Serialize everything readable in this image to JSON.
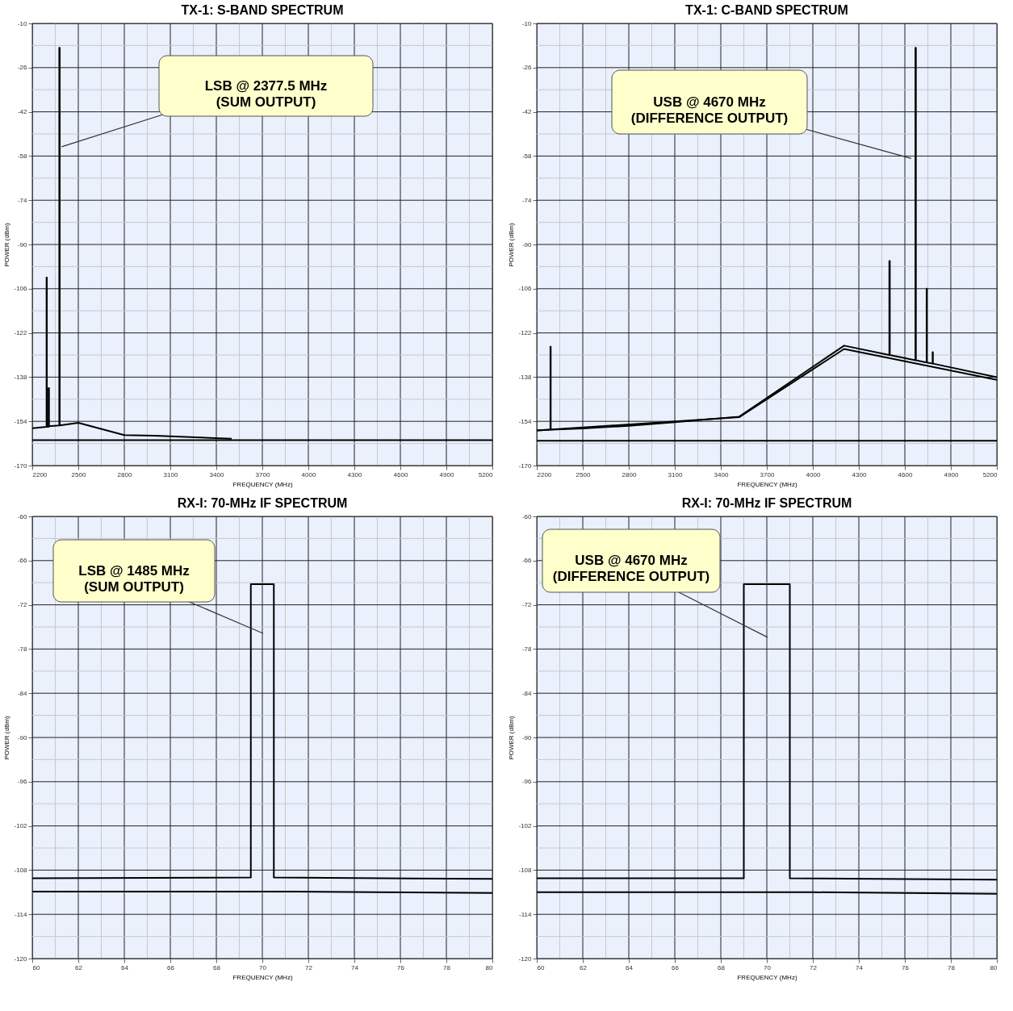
{
  "chart_data": [
    {
      "type": "line",
      "title": "TX-1: S-BAND SPECTRUM",
      "xlabel": "FREQUENCY (MHz)",
      "ylabel": "POWER (dBm)",
      "grid": true,
      "xlim": [
        2200,
        5200
      ],
      "xticks": [
        2200,
        {
          "value": 2350,
          "label": null
        },
        2500,
        {
          "value": 2650,
          "label": null
        },
        2800,
        {
          "value": 2950,
          "label": null
        },
        3100,
        {
          "value": 3250,
          "label": null
        },
        3400,
        {
          "value": 3550,
          "label": null
        },
        3700,
        {
          "value": 3850,
          "label": null
        },
        4000,
        {
          "value": 4150,
          "label": null
        },
        4300,
        {
          "value": 4450,
          "label": null
        },
        4600,
        {
          "value": 4750,
          "label": null
        },
        4900,
        {
          "value": 5050,
          "label": null
        },
        5200
      ],
      "ylim": [
        -170,
        -10
      ],
      "yticks": [
        -170,
        {
          "value": -162,
          "label": null
        },
        -154,
        {
          "value": -146,
          "label": null
        },
        -138,
        {
          "value": -130,
          "label": null
        },
        -122,
        {
          "value": -114,
          "label": null
        },
        -106,
        {
          "value": -98,
          "label": null
        },
        -90,
        {
          "value": -82,
          "label": null
        },
        -74,
        {
          "value": -66,
          "label": null
        },
        -58,
        {
          "value": -50,
          "label": null
        },
        -42,
        {
          "value": -34,
          "label": null
        },
        -26,
        {
          "value": -18,
          "label": null
        },
        -10
      ],
      "series": [
        {
          "color": "#000000",
          "x": [
            2200,
            2293,
            2293,
            2295,
            2295,
            2306,
            2306,
            2309,
            2309,
            2376,
            2376,
            2379,
            2379,
            2500,
            2800,
            3000,
            3500
          ],
          "values": [
            -156.5,
            -156,
            -102,
            -102,
            -156,
            -156,
            -142,
            -142,
            -155.8,
            -155.5,
            -18.8,
            -18.8,
            -155.5,
            -154.5,
            -159,
            -159.2,
            -160.3
          ]
        },
        {
          "color": "#000000",
          "x": [
            2200,
            5200
          ],
          "values": [
            -160.8,
            -160.8
          ]
        }
      ],
      "annotations": [
        "LSB @ 2377.5 MHz\n(SUM OUTPUT)"
      ]
    },
    {
      "type": "line",
      "title": "TX-1: C-BAND SPECTRUM",
      "xlabel": "FREQUENCY (MHz)",
      "ylabel": "POWER (dBm)",
      "grid": true,
      "xlim": [
        2200,
        5200
      ],
      "xticks": [
        2200,
        {
          "value": 2350,
          "label": null
        },
        2500,
        {
          "value": 2650,
          "label": null
        },
        2800,
        {
          "value": 2950,
          "label": null
        },
        3100,
        {
          "value": 3250,
          "label": null
        },
        3400,
        {
          "value": 3550,
          "label": null
        },
        3700,
        {
          "value": 3850,
          "label": null
        },
        4000,
        {
          "value": 4150,
          "label": null
        },
        4300,
        {
          "value": 4450,
          "label": null
        },
        4600,
        {
          "value": 4750,
          "label": null
        },
        4900,
        {
          "value": 5050,
          "label": null
        },
        5200
      ],
      "ylim": [
        -170,
        -10
      ],
      "yticks": [
        -170,
        {
          "value": -162,
          "label": null
        },
        -154,
        {
          "value": -146,
          "label": null
        },
        -138,
        {
          "value": -130,
          "label": null
        },
        -122,
        {
          "value": -114,
          "label": null
        },
        -106,
        {
          "value": -98,
          "label": null
        },
        -90,
        {
          "value": -82,
          "label": null
        },
        -74,
        {
          "value": -66,
          "label": null
        },
        -58,
        {
          "value": -50,
          "label": null
        },
        -42,
        {
          "value": -34,
          "label": null
        },
        -26,
        {
          "value": -18,
          "label": null
        },
        -10
      ],
      "series": [
        {
          "color": "#000000",
          "x": [
            2200,
            2289,
            2289,
            2291,
            2291,
            2500,
            2800,
            3100,
            3520,
            4204,
            4499,
            4499,
            4502,
            4502,
            4669,
            4669,
            4672,
            4672,
            4742,
            4742,
            4744,
            4744,
            4781,
            4781,
            4783,
            4783,
            5200
          ],
          "values": [
            -157.3,
            -157,
            -127,
            -127,
            -157,
            -156.6,
            -155.6,
            -154.3,
            -152.3,
            -126.6,
            -130,
            -96,
            -96,
            -130,
            -131.9,
            -18.8,
            -18.8,
            -131.9,
            -132.7,
            -106,
            -106,
            -132.7,
            -133.1,
            -129,
            -129,
            -133.1,
            -138
          ]
        },
        {
          "color": "#000000",
          "x": [
            2200,
            3520,
            4204,
            5200
          ],
          "values": [
            -157.3,
            -152.5,
            -127.8,
            -139
          ]
        },
        {
          "color": "#000000",
          "x": [
            2200,
            5200
          ],
          "values": [
            -161,
            -161
          ]
        }
      ],
      "annotations": [
        "USB @ 4670 MHz\n(DIFFERENCE OUTPUT)"
      ]
    },
    {
      "type": "line",
      "title": "RX-I: 70-MHz IF SPECTRUM",
      "xlabel": "FREQUENCY (MHz)",
      "ylabel": "POWER (dBm)",
      "grid": true,
      "xlim": [
        60,
        80
      ],
      "xticks": [
        60,
        {
          "value": 61,
          "label": null
        },
        62,
        {
          "value": 63,
          "label": null
        },
        64,
        {
          "value": 65,
          "label": null
        },
        66,
        {
          "value": 67,
          "label": null
        },
        68,
        {
          "value": 69,
          "label": null
        },
        70,
        {
          "value": 71,
          "label": null
        },
        72,
        {
          "value": 73,
          "label": null
        },
        74,
        {
          "value": 75,
          "label": null
        },
        76,
        {
          "value": 77,
          "label": null
        },
        78,
        {
          "value": 79,
          "label": null
        },
        80
      ],
      "ylim": [
        -120,
        -60
      ],
      "yticks": [
        -120,
        {
          "value": -117,
          "label": null
        },
        -114,
        {
          "value": -111,
          "label": null
        },
        -108,
        {
          "value": -105,
          "label": null
        },
        -102,
        {
          "value": -99,
          "label": null
        },
        -96,
        {
          "value": -93,
          "label": null
        },
        -90,
        {
          "value": -87,
          "label": null
        },
        -84,
        {
          "value": -81,
          "label": null
        },
        -78,
        {
          "value": -75,
          "label": null
        },
        -72,
        {
          "value": -69,
          "label": null
        },
        -66,
        {
          "value": -63,
          "label": null
        },
        -60
      ],
      "series": [
        {
          "color": "#000000",
          "x": [
            60,
            69.5,
            69.5,
            70.5,
            70.5,
            80
          ],
          "values": [
            -109.1,
            -109,
            -69.2,
            -69.2,
            -109,
            -109.2
          ]
        },
        {
          "color": "#000000",
          "x": [
            60,
            71.5,
            75,
            80
          ],
          "values": [
            -110.9,
            -110.9,
            -111,
            -111.1
          ]
        }
      ],
      "annotations": [
        "LSB @ 1485 MHz\n(SUM OUTPUT)"
      ]
    },
    {
      "type": "line",
      "title": "RX-I: 70-MHz IF SPECTRUM",
      "xlabel": "FREQUENCY (MHz)",
      "ylabel": "POWER (dBm)",
      "grid": true,
      "xlim": [
        60,
        80
      ],
      "xticks": [
        60,
        {
          "value": 61,
          "label": null
        },
        62,
        {
          "value": 63,
          "label": null
        },
        64,
        {
          "value": 65,
          "label": null
        },
        66,
        {
          "value": 67,
          "label": null
        },
        68,
        {
          "value": 69,
          "label": null
        },
        70,
        {
          "value": 71,
          "label": null
        },
        72,
        {
          "value": 73,
          "label": null
        },
        74,
        {
          "value": 75,
          "label": null
        },
        76,
        {
          "value": 77,
          "label": null
        },
        78,
        {
          "value": 79,
          "label": null
        },
        80
      ],
      "ylim": [
        -120,
        -60
      ],
      "yticks": [
        -120,
        {
          "value": -117,
          "label": null
        },
        -114,
        {
          "value": -111,
          "label": null
        },
        -108,
        {
          "value": -105,
          "label": null
        },
        -102,
        {
          "value": -99,
          "label": null
        },
        -96,
        {
          "value": -93,
          "label": null
        },
        -90,
        {
          "value": -87,
          "label": null
        },
        -84,
        {
          "value": -81,
          "label": null
        },
        -78,
        {
          "value": -75,
          "label": null
        },
        -72,
        {
          "value": -69,
          "label": null
        },
        -66,
        {
          "value": -63,
          "label": null
        },
        -60
      ],
      "series": [
        {
          "color": "#000000",
          "x": [
            60,
            69,
            69,
            71,
            71,
            80
          ],
          "values": [
            -109.1,
            -109.1,
            -69.2,
            -69.2,
            -109.1,
            -109.3
          ]
        },
        {
          "color": "#000000",
          "x": [
            60,
            66,
            72,
            80
          ],
          "values": [
            -111,
            -111,
            -111,
            -111.2
          ]
        }
      ],
      "annotations": [
        "USB @ 4670 MHz\n(DIFFERENCE OUTPUT)"
      ]
    }
  ]
}
